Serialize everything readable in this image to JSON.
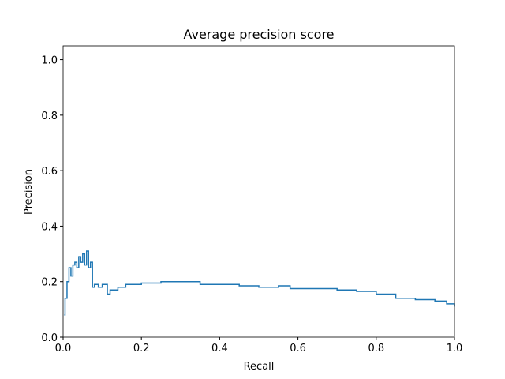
{
  "chart_data": {
    "type": "line",
    "title": "Average precision score",
    "xlabel": "Recall",
    "ylabel": "Precision",
    "drawstyle": "steps-post",
    "color": "#1f77b4",
    "x": [
      0.003,
      0.005,
      0.01,
      0.015,
      0.02,
      0.025,
      0.03,
      0.035,
      0.04,
      0.045,
      0.05,
      0.055,
      0.06,
      0.065,
      0.07,
      0.075,
      0.08,
      0.09,
      0.1,
      0.11,
      0.113,
      0.12,
      0.14,
      0.16,
      0.2,
      0.25,
      0.3,
      0.35,
      0.4,
      0.45,
      0.5,
      0.55,
      0.58,
      0.65,
      0.7,
      0.75,
      0.8,
      0.85,
      0.9,
      0.95,
      0.98,
      1.0
    ],
    "values": [
      0.08,
      0.14,
      0.2,
      0.25,
      0.22,
      0.26,
      0.27,
      0.25,
      0.29,
      0.27,
      0.3,
      0.26,
      0.31,
      0.25,
      0.27,
      0.18,
      0.19,
      0.18,
      0.19,
      0.19,
      0.155,
      0.17,
      0.18,
      0.19,
      0.195,
      0.2,
      0.2,
      0.19,
      0.19,
      0.185,
      0.18,
      0.185,
      0.175,
      0.175,
      0.17,
      0.165,
      0.155,
      0.14,
      0.135,
      0.13,
      0.12,
      0.11
    ],
    "xlim": [
      0,
      1
    ],
    "xticks": [
      {
        "value": 0,
        "label": "0.0"
      },
      0.2,
      0.4,
      0.6,
      0.8,
      {
        "value": 1,
        "label": "1.0"
      }
    ],
    "ylim": [
      0,
      1.05
    ],
    "yticks": [
      {
        "value": 0,
        "label": "0.0"
      },
      0.2,
      0.4,
      0.6,
      0.8,
      {
        "value": 1,
        "label": "1.0"
      }
    ]
  }
}
